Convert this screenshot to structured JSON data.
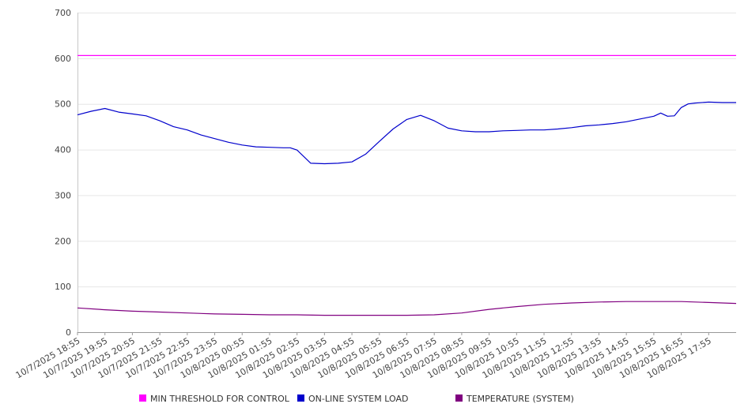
{
  "chart_data": {
    "type": "line",
    "title": "",
    "xlabel": "",
    "ylabel": "",
    "ylim": [
      0,
      700
    ],
    "yticks": [
      0,
      100,
      200,
      300,
      400,
      500,
      600,
      700
    ],
    "grid": true,
    "legend_position": "bottom",
    "x_start": "10/7/2025 18:55",
    "x_end": "10/8/2025 18:55",
    "categories": [
      "10/7/2025 18:55",
      "10/7/2025 19:55",
      "10/7/2025 20:55",
      "10/7/2025 21:55",
      "10/7/2025 22:55",
      "10/7/2025 23:55",
      "10/8/2025 00:55",
      "10/8/2025 01:55",
      "10/8/2025 02:55",
      "10/8/2025 03:55",
      "10/8/2025 04:55",
      "10/8/2025 05:55",
      "10/8/2025 06:55",
      "10/8/2025 07:55",
      "10/8/2025 08:55",
      "10/8/2025 09:55",
      "10/8/2025 10:55",
      "10/8/2025 11:55",
      "10/8/2025 12:55",
      "10/8/2025 13:55",
      "10/8/2025 14:55",
      "10/8/2025 15:55",
      "10/8/2025 16:55",
      "10/8/2025 17:55"
    ],
    "series": [
      {
        "name": "MIN THRESHOLD FOR CONTROL",
        "color": "#ff00ff",
        "x": [
          "10/7/2025 18:55",
          "10/8/2025 18:55"
        ],
        "values": [
          606,
          606
        ]
      },
      {
        "name": "ON-LINE SYSTEM LOAD",
        "color": "#0000cc",
        "x": [
          "10/7/2025 18:55",
          "10/7/2025 19:25",
          "10/7/2025 19:55",
          "10/7/2025 20:25",
          "10/7/2025 20:55",
          "10/7/2025 21:25",
          "10/7/2025 21:55",
          "10/7/2025 22:25",
          "10/7/2025 22:55",
          "10/7/2025 23:25",
          "10/7/2025 23:55",
          "10/8/2025 00:25",
          "10/8/2025 00:55",
          "10/8/2025 01:25",
          "10/8/2025 01:55",
          "10/8/2025 02:25",
          "10/8/2025 02:40",
          "10/8/2025 02:55",
          "10/8/2025 03:25",
          "10/8/2025 03:55",
          "10/8/2025 04:25",
          "10/8/2025 04:55",
          "10/8/2025 05:25",
          "10/8/2025 05:55",
          "10/8/2025 06:25",
          "10/8/2025 06:55",
          "10/8/2025 07:25",
          "10/8/2025 07:55",
          "10/8/2025 08:25",
          "10/8/2025 08:55",
          "10/8/2025 09:25",
          "10/8/2025 09:55",
          "10/8/2025 10:25",
          "10/8/2025 10:55",
          "10/8/2025 11:25",
          "10/8/2025 11:55",
          "10/8/2025 12:25",
          "10/8/2025 12:55",
          "10/8/2025 13:25",
          "10/8/2025 13:55",
          "10/8/2025 14:25",
          "10/8/2025 14:55",
          "10/8/2025 15:25",
          "10/8/2025 15:55",
          "10/8/2025 16:10",
          "10/8/2025 16:25",
          "10/8/2025 16:40",
          "10/8/2025 16:55",
          "10/8/2025 17:10",
          "10/8/2025 17:25",
          "10/8/2025 17:55",
          "10/8/2025 18:25",
          "10/8/2025 18:55"
        ],
        "values": [
          476,
          484,
          490,
          482,
          478,
          474,
          463,
          450,
          443,
          432,
          424,
          416,
          410,
          406,
          405,
          404,
          404,
          399,
          370,
          369,
          370,
          373,
          390,
          418,
          445,
          466,
          475,
          463,
          447,
          441,
          439,
          439,
          441,
          442,
          443,
          443,
          445,
          448,
          452,
          454,
          457,
          461,
          467,
          473,
          480,
          473,
          474,
          492,
          500,
          502,
          504,
          503,
          503
        ]
      },
      {
        "name": "TEMPERATURE (SYSTEM)",
        "color": "#800080",
        "x": [
          "10/7/2025 18:55",
          "10/7/2025 19:55",
          "10/7/2025 20:55",
          "10/7/2025 21:55",
          "10/7/2025 22:55",
          "10/7/2025 23:55",
          "10/8/2025 00:55",
          "10/8/2025 01:55",
          "10/8/2025 02:55",
          "10/8/2025 03:55",
          "10/8/2025 04:55",
          "10/8/2025 05:55",
          "10/8/2025 06:55",
          "10/8/2025 07:55",
          "10/8/2025 08:55",
          "10/8/2025 09:55",
          "10/8/2025 10:55",
          "10/8/2025 11:55",
          "10/8/2025 12:55",
          "10/8/2025 13:55",
          "10/8/2025 14:55",
          "10/8/2025 15:55",
          "10/8/2025 16:55",
          "10/8/2025 17:55",
          "10/8/2025 18:55"
        ],
        "values": [
          53,
          49,
          46,
          44,
          42,
          40,
          39,
          38,
          38,
          37,
          37,
          37,
          37,
          38,
          42,
          50,
          56,
          61,
          64,
          66,
          67,
          67,
          67,
          65,
          63
        ]
      }
    ]
  }
}
